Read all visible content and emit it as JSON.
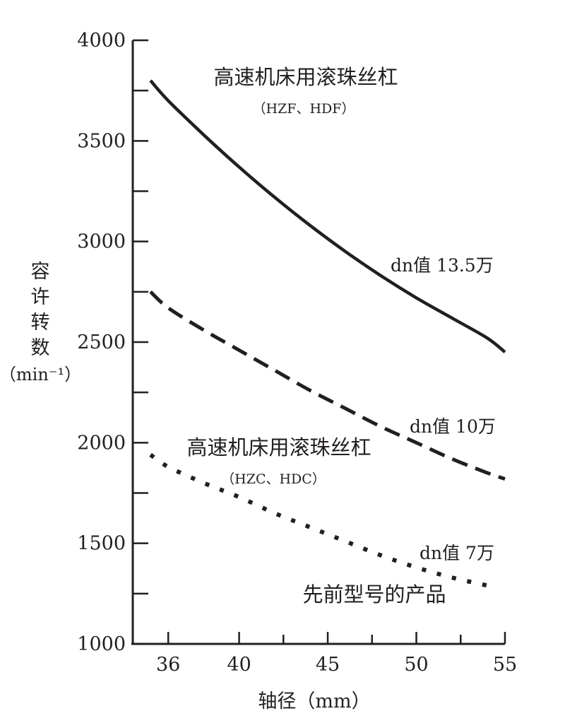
{
  "chart_data": {
    "type": "line",
    "title": "",
    "xlabel": "轴径（mm）",
    "ylabel_chars": [
      "容",
      "许",
      "转",
      "数"
    ],
    "ylabel_unit": "（min⁻¹）",
    "xlim": [
      34,
      55
    ],
    "ylim": [
      1000,
      4000
    ],
    "x_ticks": [
      {
        "value": 36,
        "label": "36"
      },
      {
        "value": 40,
        "label": "40"
      },
      {
        "value": 45,
        "label": "45"
      },
      {
        "value": 50,
        "label": "50"
      },
      {
        "value": 55,
        "label": "55"
      }
    ],
    "x_minor_ticks": [
      42.5,
      47.5,
      52.5
    ],
    "y_ticks": [
      {
        "value": 1000,
        "label": "1000"
      },
      {
        "value": 1500,
        "label": "1500"
      },
      {
        "value": 2000,
        "label": "2000"
      },
      {
        "value": 2500,
        "label": "2500"
      },
      {
        "value": 3000,
        "label": "3000"
      },
      {
        "value": 3500,
        "label": "3500"
      },
      {
        "value": 4000,
        "label": "4000"
      }
    ],
    "y_minor_ticks": [
      1250,
      1750,
      2250,
      2750,
      3250,
      3750
    ],
    "grid": false,
    "legend": "none",
    "series": [
      {
        "label": "dn值 13.5万",
        "style": "solid",
        "dn": 135000,
        "x": [
          35,
          36,
          38,
          40,
          42,
          44,
          46,
          48,
          50,
          52,
          54,
          55
        ],
        "y": [
          3800,
          3700,
          3530,
          3370,
          3220,
          3080,
          2950,
          2830,
          2720,
          2620,
          2520,
          2450
        ]
      },
      {
        "label": "dn值 10万",
        "style": "dashed",
        "dn": 100000,
        "x": [
          35,
          36,
          38,
          40,
          42,
          44,
          46,
          48,
          50,
          52,
          54,
          55
        ],
        "y": [
          2750,
          2670,
          2560,
          2460,
          2360,
          2260,
          2170,
          2080,
          2000,
          1920,
          1850,
          1820
        ]
      },
      {
        "label": "dn值 7万",
        "style": "dotted",
        "dn": 70000,
        "x": [
          35,
          36,
          38,
          40,
          42,
          44,
          46,
          48,
          50,
          52,
          54
        ],
        "y": [
          1940,
          1880,
          1800,
          1730,
          1650,
          1580,
          1510,
          1440,
          1380,
          1330,
          1290
        ]
      }
    ],
    "annotations": [
      {
        "text": "高速机床用滚珠丝杠",
        "sub": "（HZF、HDF）"
      },
      {
        "text": "高速机床用滚珠丝杠",
        "sub": "（HZC、HDC）"
      },
      {
        "text": "先前型号的产品"
      }
    ]
  }
}
